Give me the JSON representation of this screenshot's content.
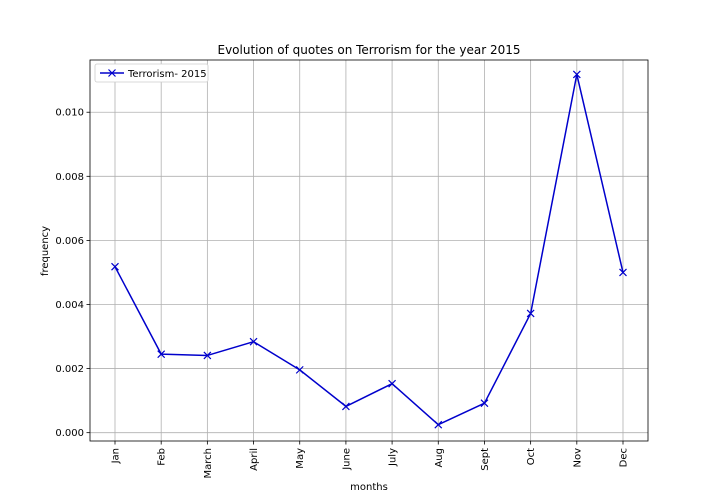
{
  "chart_data": {
    "type": "line",
    "title": "Evolution of quotes on Terrorism for the year 2015",
    "xlabel": "months",
    "ylabel": "frequency",
    "categories": [
      "Jan",
      "Feb",
      "March",
      "April",
      "May",
      "June",
      "July",
      "Aug",
      "Sept",
      "Oct",
      "Nov",
      "Dec"
    ],
    "series": [
      {
        "name": "Terrorism- 2015",
        "values": [
          0.00518,
          0.00245,
          0.00241,
          0.00284,
          0.00196,
          0.00082,
          0.00153,
          0.00025,
          0.00092,
          0.00372,
          0.01118,
          0.005
        ],
        "color": "#0000cc",
        "marker": "x"
      }
    ],
    "ylim": [
      -0.00026,
      0.01163
    ],
    "yticks": [
      0.0,
      0.002,
      0.004,
      0.006,
      0.008,
      0.01
    ],
    "ytick_labels": [
      "0.000",
      "0.002",
      "0.004",
      "0.006",
      "0.008",
      "0.010"
    ],
    "grid": true,
    "legend": "top-left"
  }
}
